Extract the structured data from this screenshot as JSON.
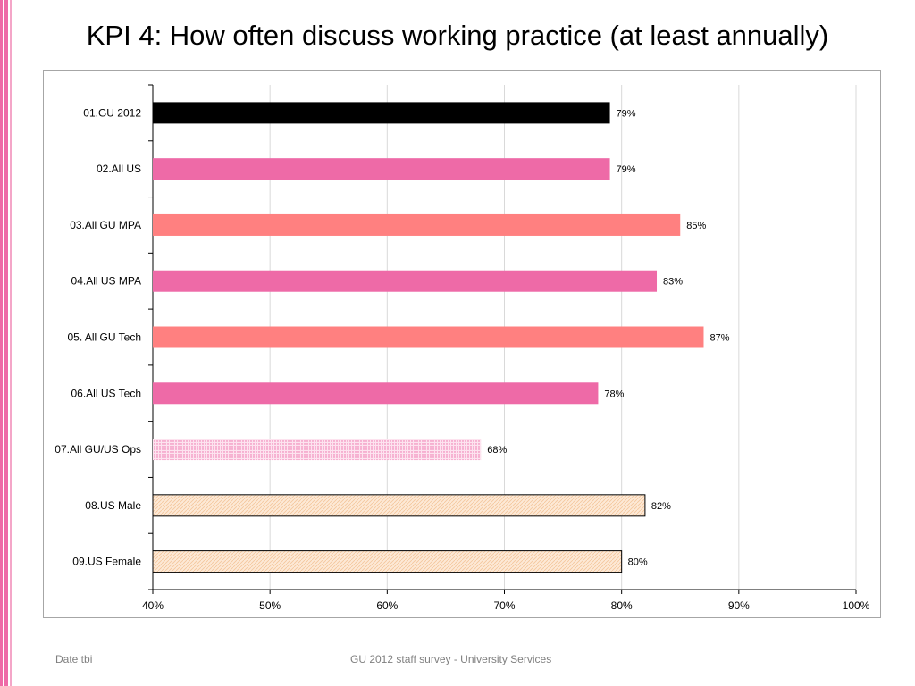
{
  "slide": {
    "title": "KPI 4: How often discuss working practice (at least annually)",
    "footer_left": "Date tbi",
    "footer_center": "GU 2012 staff survey -  University Services"
  },
  "colors": {
    "stripe_pink": "#ee6aa7",
    "black": "#000000",
    "pink": "#ee6aa7",
    "salmon": "#ff8080",
    "light_pink_pattern": "#f6b3d3",
    "peach_pattern": "#fbe3cc",
    "grid": "#d9d9d9"
  },
  "chart_data": {
    "type": "bar",
    "orientation": "horizontal",
    "categories": [
      "01.GU 2012",
      "02.All US",
      "03.All GU MPA",
      "04.All US MPA",
      "05. All GU Tech",
      "06.All US Tech",
      "07.All GU/US Ops",
      "08.US Male",
      "09.US Female"
    ],
    "values": [
      79,
      79,
      85,
      83,
      87,
      78,
      68,
      82,
      80
    ],
    "data_labels": [
      "79%",
      "79%",
      "85%",
      "83%",
      "87%",
      "78%",
      "68%",
      "82%",
      "80%"
    ],
    "bar_styles": [
      "black",
      "pink",
      "salmon",
      "pink",
      "salmon",
      "pink",
      "light_pink_pattern",
      "peach_pattern",
      "peach_pattern"
    ],
    "xlim": [
      40,
      100
    ],
    "xticks": [
      40,
      50,
      60,
      70,
      80,
      90,
      100
    ],
    "xtick_labels": [
      "40%",
      "50%",
      "60%",
      "70%",
      "80%",
      "90%",
      "100%"
    ],
    "grid": true,
    "legend": "none"
  }
}
